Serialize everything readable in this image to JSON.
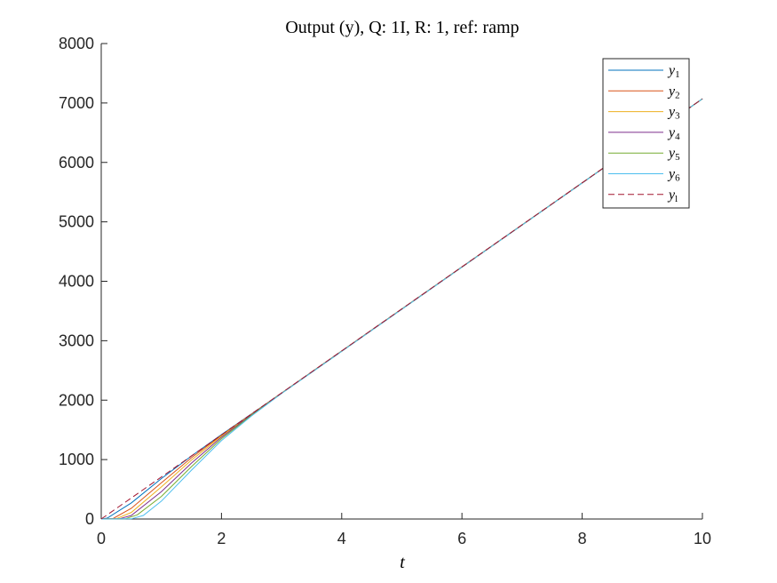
{
  "chart_data": {
    "type": "line",
    "title": "Output (y), Q: 1I, R: 1, ref: ramp",
    "xlabel": "t",
    "ylabel": "",
    "xlim": [
      0,
      10
    ],
    "ylim": [
      0,
      8000
    ],
    "xticks": [
      0,
      2,
      4,
      6,
      8,
      10
    ],
    "yticks": [
      0,
      1000,
      2000,
      3000,
      4000,
      5000,
      6000,
      7000,
      8000
    ],
    "grid": false,
    "legend_position": "top-right",
    "series": [
      {
        "name": "y1",
        "label_base": "y",
        "label_sub": "1",
        "color": "#0072BD",
        "dash": "solid",
        "x": [
          0,
          0.1,
          0.5,
          1,
          1.5,
          2,
          2.5,
          3,
          10
        ],
        "y": [
          0,
          15,
          270,
          680,
          1060,
          1420,
          1770,
          2120,
          7070
        ]
      },
      {
        "name": "y2",
        "label_base": "y",
        "label_sub": "2",
        "color": "#D95319",
        "dash": "solid",
        "x": [
          0,
          0.2,
          0.5,
          1,
          1.5,
          2,
          2.5,
          3,
          10
        ],
        "y": [
          0,
          10,
          180,
          610,
          1030,
          1410,
          1765,
          2120,
          7070
        ]
      },
      {
        "name": "y3",
        "label_base": "y",
        "label_sub": "3",
        "color": "#EDB120",
        "dash": "solid",
        "x": [
          0,
          0.25,
          0.5,
          1,
          1.5,
          2,
          2.5,
          3,
          10
        ],
        "y": [
          0,
          5,
          110,
          540,
          990,
          1395,
          1760,
          2118,
          7070
        ]
      },
      {
        "name": "y4",
        "label_base": "y",
        "label_sub": "4",
        "color": "#7E2F8E",
        "dash": "solid",
        "x": [
          0,
          0.3,
          0.5,
          1,
          1.5,
          2,
          2.5,
          3,
          10
        ],
        "y": [
          0,
          3,
          60,
          460,
          940,
          1375,
          1755,
          2116,
          7070
        ]
      },
      {
        "name": "y5",
        "label_base": "y",
        "label_sub": "5",
        "color": "#77AC30",
        "dash": "solid",
        "x": [
          0,
          0.4,
          0.6,
          1,
          1.5,
          2,
          2.5,
          3,
          10
        ],
        "y": [
          0,
          3,
          70,
          380,
          880,
          1350,
          1745,
          2114,
          7070
        ]
      },
      {
        "name": "y6",
        "label_base": "y",
        "label_sub": "6",
        "color": "#4DBEEE",
        "dash": "solid",
        "x": [
          0,
          0.5,
          0.7,
          1,
          1.5,
          2,
          2.5,
          3,
          10
        ],
        "y": [
          0,
          3,
          60,
          300,
          820,
          1320,
          1735,
          2112,
          7070
        ]
      },
      {
        "name": "yl",
        "label_base": "y",
        "label_sub": "l",
        "color": "#A2142F",
        "dash": "dashed",
        "x": [
          0,
          10
        ],
        "y": [
          0,
          7071
        ]
      }
    ]
  }
}
